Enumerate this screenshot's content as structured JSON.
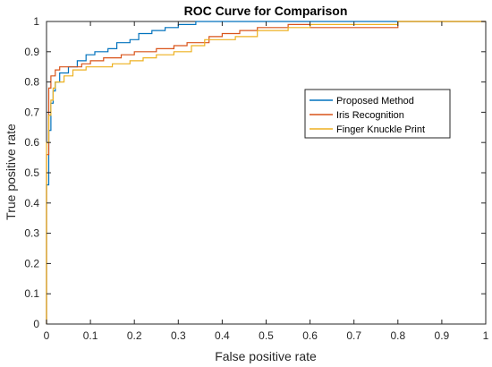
{
  "chart_data": {
    "type": "line",
    "title": "ROC Curve for Comparison",
    "xlabel": "False positive rate",
    "ylabel": "True positive rate",
    "xlim": [
      0,
      1
    ],
    "ylim": [
      0,
      1
    ],
    "x_ticks": [
      "0",
      "0.1",
      "0.2",
      "0.3",
      "0.4",
      "0.5",
      "0.6",
      "0.7",
      "0.8",
      "0.9",
      "1"
    ],
    "y_ticks": [
      "0",
      "0.1",
      "0.2",
      "0.3",
      "0.4",
      "0.5",
      "0.6",
      "0.7",
      "0.8",
      "0.9",
      "1"
    ],
    "grid": false,
    "legend_position": "right",
    "series": [
      {
        "name": "Proposed Method",
        "color": "#0072bd",
        "points": [
          [
            0,
            0
          ],
          [
            0,
            0.46
          ],
          [
            0.005,
            0.46
          ],
          [
            0.005,
            0.64
          ],
          [
            0.01,
            0.64
          ],
          [
            0.01,
            0.73
          ],
          [
            0.015,
            0.73
          ],
          [
            0.015,
            0.77
          ],
          [
            0.02,
            0.77
          ],
          [
            0.02,
            0.8
          ],
          [
            0.03,
            0.8
          ],
          [
            0.03,
            0.83
          ],
          [
            0.05,
            0.83
          ],
          [
            0.05,
            0.85
          ],
          [
            0.07,
            0.85
          ],
          [
            0.07,
            0.87
          ],
          [
            0.09,
            0.87
          ],
          [
            0.09,
            0.89
          ],
          [
            0.11,
            0.89
          ],
          [
            0.11,
            0.9
          ],
          [
            0.14,
            0.9
          ],
          [
            0.14,
            0.91
          ],
          [
            0.16,
            0.91
          ],
          [
            0.16,
            0.93
          ],
          [
            0.19,
            0.93
          ],
          [
            0.19,
            0.94
          ],
          [
            0.21,
            0.94
          ],
          [
            0.21,
            0.96
          ],
          [
            0.24,
            0.96
          ],
          [
            0.24,
            0.97
          ],
          [
            0.27,
            0.97
          ],
          [
            0.27,
            0.98
          ],
          [
            0.3,
            0.98
          ],
          [
            0.3,
            0.99
          ],
          [
            0.34,
            0.99
          ],
          [
            0.34,
            1.0
          ],
          [
            1.0,
            1.0
          ]
        ]
      },
      {
        "name": "Iris Recognition",
        "color": "#d95319",
        "points": [
          [
            0,
            0
          ],
          [
            0,
            0.56
          ],
          [
            0.005,
            0.56
          ],
          [
            0.005,
            0.78
          ],
          [
            0.01,
            0.78
          ],
          [
            0.01,
            0.82
          ],
          [
            0.02,
            0.82
          ],
          [
            0.02,
            0.84
          ],
          [
            0.03,
            0.84
          ],
          [
            0.03,
            0.85
          ],
          [
            0.08,
            0.85
          ],
          [
            0.08,
            0.86
          ],
          [
            0.1,
            0.86
          ],
          [
            0.1,
            0.87
          ],
          [
            0.13,
            0.87
          ],
          [
            0.13,
            0.88
          ],
          [
            0.17,
            0.88
          ],
          [
            0.17,
            0.89
          ],
          [
            0.2,
            0.89
          ],
          [
            0.2,
            0.9
          ],
          [
            0.25,
            0.9
          ],
          [
            0.25,
            0.91
          ],
          [
            0.29,
            0.91
          ],
          [
            0.29,
            0.92
          ],
          [
            0.32,
            0.92
          ],
          [
            0.32,
            0.93
          ],
          [
            0.37,
            0.93
          ],
          [
            0.37,
            0.95
          ],
          [
            0.4,
            0.95
          ],
          [
            0.4,
            0.96
          ],
          [
            0.44,
            0.96
          ],
          [
            0.44,
            0.97
          ],
          [
            0.48,
            0.97
          ],
          [
            0.48,
            0.98
          ],
          [
            0.55,
            0.98
          ],
          [
            0.55,
            0.99
          ],
          [
            0.6,
            0.99
          ],
          [
            0.6,
            0.98
          ],
          [
            0.8,
            0.98
          ],
          [
            0.8,
            1.0
          ],
          [
            1.0,
            1.0
          ]
        ]
      },
      {
        "name": "Finger Knuckle Print",
        "color": "#edb120",
        "points": [
          [
            0,
            0
          ],
          [
            0,
            0.6
          ],
          [
            0.005,
            0.6
          ],
          [
            0.005,
            0.69
          ],
          [
            0.01,
            0.69
          ],
          [
            0.01,
            0.74
          ],
          [
            0.015,
            0.74
          ],
          [
            0.015,
            0.78
          ],
          [
            0.02,
            0.78
          ],
          [
            0.02,
            0.8
          ],
          [
            0.04,
            0.8
          ],
          [
            0.04,
            0.82
          ],
          [
            0.06,
            0.82
          ],
          [
            0.06,
            0.84
          ],
          [
            0.09,
            0.84
          ],
          [
            0.09,
            0.85
          ],
          [
            0.15,
            0.85
          ],
          [
            0.15,
            0.86
          ],
          [
            0.19,
            0.86
          ],
          [
            0.19,
            0.87
          ],
          [
            0.22,
            0.87
          ],
          [
            0.22,
            0.88
          ],
          [
            0.25,
            0.88
          ],
          [
            0.25,
            0.89
          ],
          [
            0.29,
            0.89
          ],
          [
            0.29,
            0.9
          ],
          [
            0.33,
            0.9
          ],
          [
            0.33,
            0.92
          ],
          [
            0.36,
            0.92
          ],
          [
            0.36,
            0.94
          ],
          [
            0.43,
            0.94
          ],
          [
            0.43,
            0.95
          ],
          [
            0.48,
            0.95
          ],
          [
            0.48,
            0.97
          ],
          [
            0.55,
            0.97
          ],
          [
            0.55,
            0.98
          ],
          [
            0.6,
            0.98
          ],
          [
            0.6,
            0.99
          ],
          [
            0.8,
            0.99
          ],
          [
            0.8,
            1.0
          ],
          [
            1.0,
            1.0
          ]
        ]
      }
    ]
  }
}
